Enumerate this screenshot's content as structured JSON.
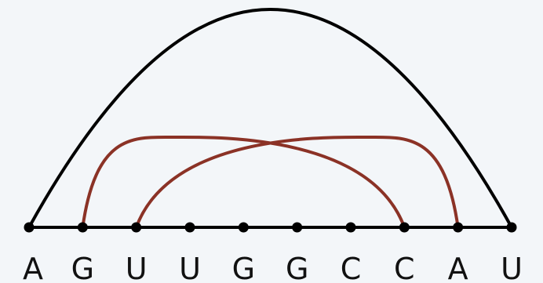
{
  "sequence": [
    "A",
    "G",
    "U",
    "U",
    "G",
    "G",
    "C",
    "C",
    "A",
    "U"
  ],
  "arcs": [
    {
      "from": 0,
      "to": 9,
      "color": "#000000"
    },
    {
      "from": 1,
      "to": 7,
      "color": "#8b3226"
    },
    {
      "from": 2,
      "to": 8,
      "color": "#8b3226"
    }
  ],
  "colors": {
    "background": "#f3f6f9",
    "backbone": "#000000",
    "nucleotide_dot": "#000000",
    "label": "#111111"
  }
}
